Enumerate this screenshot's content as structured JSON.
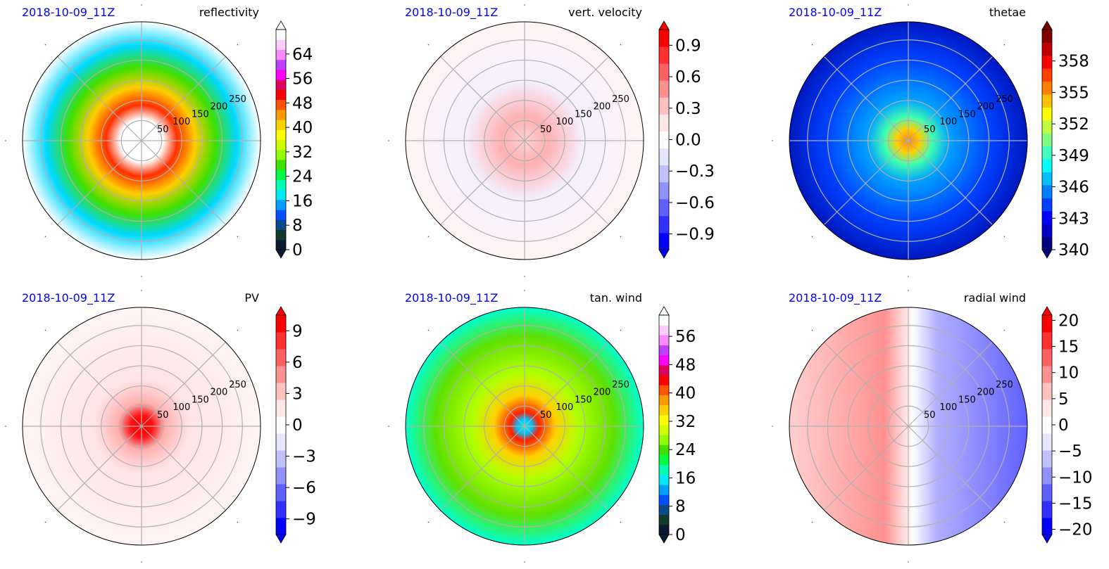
{
  "figure": {
    "panels": [
      {
        "time_label": "2018-10-09_11Z",
        "title": "reflectivity",
        "ticks": [
          "0",
          "8",
          "16",
          "24",
          "32",
          "40",
          "48",
          "56",
          "64"
        ],
        "cbar_range": [
          0,
          72
        ],
        "tick_values": [
          0,
          8,
          16,
          24,
          32,
          40,
          48,
          56,
          64
        ],
        "cmap": "radar",
        "extend": "both",
        "ring_labels": [
          "50",
          "100",
          "150",
          "200",
          "250"
        ]
      },
      {
        "time_label": "2018-10-09_11Z",
        "title": "vert. velocity",
        "ticks": [
          "−0.9",
          "−0.6",
          "−0.3",
          "0.0",
          "0.3",
          "0.6",
          "0.9"
        ],
        "cbar_range": [
          -1.05,
          1.05
        ],
        "tick_values": [
          -0.9,
          -0.6,
          -0.3,
          0,
          0.3,
          0.6,
          0.9
        ],
        "cmap": "bwr",
        "extend": "both",
        "ring_labels": [
          "50",
          "100",
          "150",
          "200",
          "250"
        ]
      },
      {
        "time_label": "2018-10-09_11Z",
        "title": "thetae",
        "ticks": [
          "340",
          "343",
          "346",
          "349",
          "352",
          "355",
          "358"
        ],
        "cbar_range": [
          340,
          361
        ],
        "tick_values": [
          340,
          343,
          346,
          349,
          352,
          355,
          358
        ],
        "cmap": "jet",
        "extend": "both",
        "ring_labels": [
          "50",
          "100",
          "150",
          "200",
          "250"
        ]
      },
      {
        "time_label": "2018-10-09_11Z",
        "title": "PV",
        "ticks": [
          "−9",
          "−6",
          "−3",
          "0",
          "3",
          "6",
          "9"
        ],
        "cbar_range": [
          -10.5,
          10.5
        ],
        "tick_values": [
          -9,
          -6,
          -3,
          0,
          3,
          6,
          9
        ],
        "cmap": "bwr",
        "extend": "both",
        "ring_labels": [
          "50",
          "100",
          "150",
          "200",
          "250"
        ]
      },
      {
        "time_label": "2018-10-09_11Z",
        "title": "tan. wind",
        "ticks": [
          "0",
          "8",
          "16",
          "24",
          "32",
          "40",
          "48",
          "56"
        ],
        "cbar_range": [
          0,
          62
        ],
        "tick_values": [
          0,
          8,
          16,
          24,
          32,
          40,
          48,
          56
        ],
        "cmap": "radar",
        "extend": "both",
        "ring_labels": [
          "50",
          "100",
          "150",
          "200",
          "250"
        ]
      },
      {
        "time_label": "2018-10-09_11Z",
        "title": "radial wind",
        "ticks": [
          "−20",
          "−15",
          "−10",
          "−5",
          "0",
          "5",
          "10",
          "15",
          "20"
        ],
        "cbar_range": [
          -21,
          21
        ],
        "tick_values": [
          -20,
          -15,
          -10,
          -5,
          0,
          5,
          10,
          15,
          20
        ],
        "cmap": "bwr",
        "extend": "both",
        "ring_labels": [
          "50",
          "100",
          "150",
          "200",
          "250"
        ]
      }
    ]
  },
  "chart_data": [
    {
      "type": "heatmap",
      "title": "reflectivity",
      "subtitle": "2018-10-09_11Z",
      "projection": "polar",
      "radial_ticks": [
        50,
        100,
        150,
        200,
        250
      ],
      "color_range": [
        0,
        72
      ],
      "colorbar_ticks": [
        0,
        8,
        16,
        24,
        32,
        40,
        48,
        56,
        64
      ],
      "grid": true
    },
    {
      "type": "heatmap",
      "title": "vert. velocity",
      "subtitle": "2018-10-09_11Z",
      "projection": "polar",
      "radial_ticks": [
        50,
        100,
        150,
        200,
        250
      ],
      "color_range": [
        -1.05,
        1.05
      ],
      "colorbar_ticks": [
        -0.9,
        -0.6,
        -0.3,
        0.0,
        0.3,
        0.6,
        0.9
      ],
      "grid": true
    },
    {
      "type": "heatmap",
      "title": "thetae",
      "subtitle": "2018-10-09_11Z",
      "projection": "polar",
      "radial_ticks": [
        50,
        100,
        150,
        200,
        250
      ],
      "color_range": [
        340,
        361
      ],
      "colorbar_ticks": [
        340,
        343,
        346,
        349,
        352,
        355,
        358
      ],
      "grid": true
    },
    {
      "type": "heatmap",
      "title": "PV",
      "subtitle": "2018-10-09_11Z",
      "projection": "polar",
      "radial_ticks": [
        50,
        100,
        150,
        200,
        250
      ],
      "color_range": [
        -10.5,
        10.5
      ],
      "colorbar_ticks": [
        -9,
        -6,
        -3,
        0,
        3,
        6,
        9
      ],
      "grid": true
    },
    {
      "type": "heatmap",
      "title": "tan. wind",
      "subtitle": "2018-10-09_11Z",
      "projection": "polar",
      "radial_ticks": [
        50,
        100,
        150,
        200,
        250
      ],
      "color_range": [
        0,
        62
      ],
      "colorbar_ticks": [
        0,
        8,
        16,
        24,
        32,
        40,
        48,
        56
      ],
      "grid": true
    },
    {
      "type": "heatmap",
      "title": "radial wind",
      "subtitle": "2018-10-09_11Z",
      "projection": "polar",
      "radial_ticks": [
        50,
        100,
        150,
        200,
        250
      ],
      "color_range": [
        -21,
        21
      ],
      "colorbar_ticks": [
        -20,
        -15,
        -10,
        -5,
        0,
        5,
        10,
        15,
        20
      ],
      "grid": true
    }
  ],
  "colors": {
    "time_label": "#0000ff",
    "grid": "#b0b0b0",
    "frame": "#000000"
  }
}
